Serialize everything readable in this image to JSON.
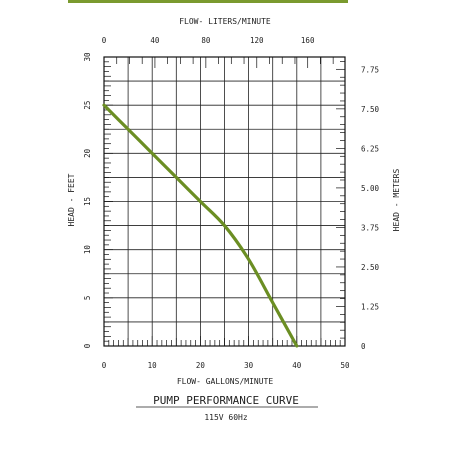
{
  "accent_color": "#7a9a2e",
  "chart_data": {
    "type": "line",
    "title": "PUMP PERFORMANCE CURVE",
    "subtitle": "115V 60Hz",
    "xlabel": "FLOW- GALLONS/MINUTE",
    "ylabel": "HEAD - FEET",
    "x2label": "FLOW- LITERS/MINUTE",
    "y2label": "HEAD - METERS",
    "xlim": [
      0,
      50
    ],
    "ylim": [
      0,
      30
    ],
    "x2lim": [
      0,
      189.3
    ],
    "y2lim": [
      0,
      9.14
    ],
    "xticks": [
      "0",
      "10",
      "20",
      "30",
      "40",
      "50"
    ],
    "yticks": [
      "0",
      "5",
      "10",
      "15",
      "20",
      "25",
      "30"
    ],
    "x2ticks": [
      "0",
      "40",
      "80",
      "120",
      "160"
    ],
    "y2ticks": [
      "0",
      "1.25",
      "2.50",
      "3.75",
      "5.00",
      "6.25",
      "7.50",
      "7.75"
    ],
    "grid": true,
    "series": [
      {
        "color": "#6b8e23",
        "x": [
          0,
          5,
          10,
          15,
          20,
          25,
          30,
          35,
          40
        ],
        "y": [
          25,
          22.5,
          20,
          17.5,
          15,
          12.5,
          9,
          4.5,
          0
        ]
      }
    ]
  }
}
